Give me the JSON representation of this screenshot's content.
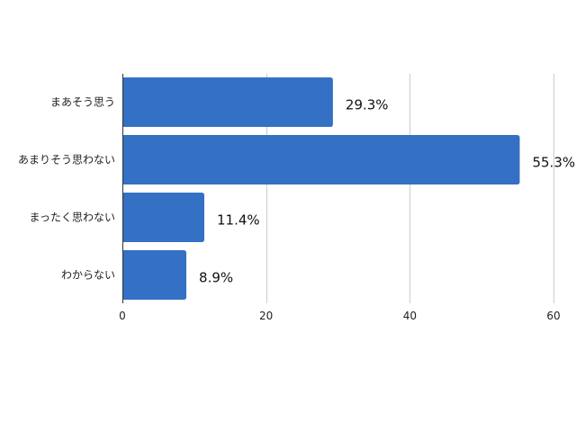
{
  "chart_data": {
    "type": "bar",
    "orientation": "horizontal",
    "categories": [
      "まあそう思う",
      "あまりそう思わない",
      "まったく思わない",
      "わからない"
    ],
    "values": [
      29.3,
      55.3,
      11.4,
      8.9
    ],
    "value_labels": [
      "29.3%",
      "55.3%",
      "11.4%",
      "8.9%"
    ],
    "title": "",
    "xlabel": "",
    "ylabel": "",
    "xlim": [
      0,
      60
    ],
    "x_ticks": [
      0,
      20,
      40,
      60
    ],
    "x_tick_labels": [
      "0",
      "20",
      "40",
      "60"
    ],
    "grid": "vertical",
    "legend": "none",
    "bar_color": "#3470c4",
    "grid_color": "#cccccc",
    "axis_color": "#333333"
  }
}
